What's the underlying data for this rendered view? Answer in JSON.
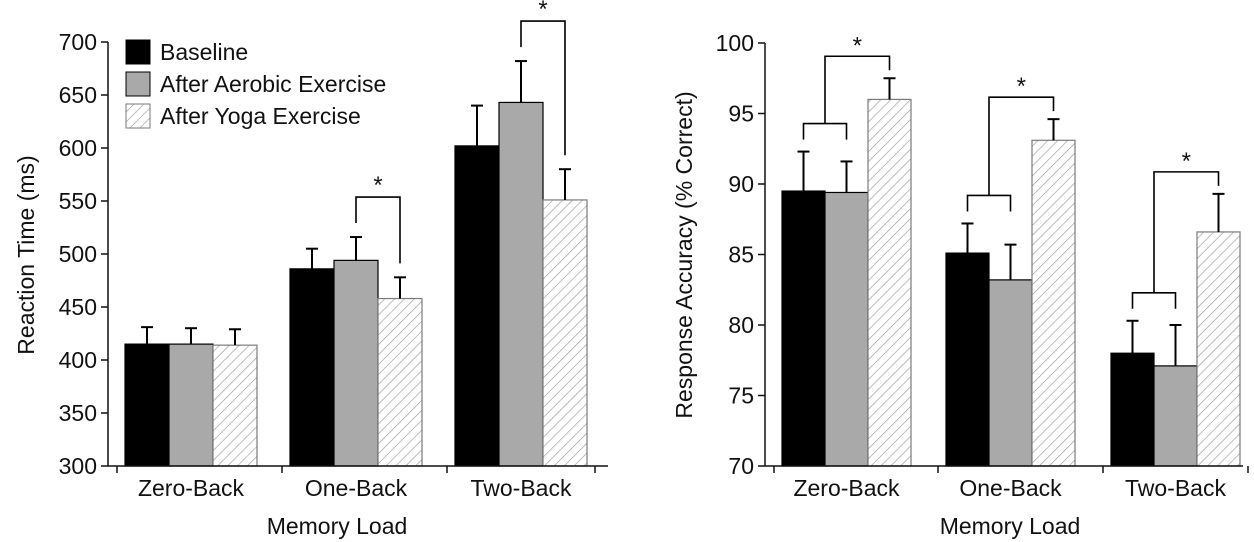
{
  "chart_data": [
    {
      "type": "bar",
      "xlabel": "Memory Load",
      "ylabel": "Reaction Time (ms)",
      "ylim": [
        300,
        700
      ],
      "yticks": [
        300,
        350,
        400,
        450,
        500,
        550,
        600,
        650,
        700
      ],
      "categories": [
        "Zero-Back",
        "One-Back",
        "Two-Back"
      ],
      "series": [
        {
          "name": "Baseline",
          "values": [
            415,
            486,
            602
          ],
          "errors": [
            16,
            19,
            38
          ]
        },
        {
          "name": "After Aerobic Exercise",
          "values": [
            415,
            494,
            643
          ],
          "errors": [
            15,
            22,
            39
          ]
        },
        {
          "name": "After Yoga Exercise",
          "values": [
            414,
            458,
            551
          ],
          "errors": [
            15,
            20,
            29
          ]
        }
      ],
      "legend": "top-left",
      "grid": false,
      "significance": [
        {
          "category": "One-Back",
          "between": [
            "After Aerobic Exercise",
            "After Yoga Exercise"
          ],
          "label": "*"
        },
        {
          "category": "Two-Back",
          "between": [
            "After Aerobic Exercise",
            "After Yoga Exercise"
          ],
          "label": "*"
        }
      ]
    },
    {
      "type": "bar",
      "xlabel": "Memory Load",
      "ylabel": "Response Accuracy (% Correct)",
      "ylim": [
        70,
        100
      ],
      "yticks": [
        70,
        75,
        80,
        85,
        90,
        95,
        100
      ],
      "categories": [
        "Zero-Back",
        "One-Back",
        "Two-Back"
      ],
      "series": [
        {
          "name": "Baseline",
          "values": [
            89.5,
            85.1,
            78.0
          ],
          "errors": [
            2.8,
            2.1,
            2.3
          ]
        },
        {
          "name": "After Aerobic Exercise",
          "values": [
            89.4,
            83.2,
            77.1
          ],
          "errors": [
            2.2,
            2.5,
            2.9
          ]
        },
        {
          "name": "After Yoga Exercise",
          "values": [
            96.0,
            93.1,
            86.6
          ],
          "errors": [
            1.5,
            1.5,
            2.7
          ]
        }
      ],
      "grid": false,
      "significance": [
        {
          "category": "Zero-Back",
          "between": [
            "Baseline + After Aerobic Exercise",
            "After Yoga Exercise"
          ],
          "label": "*"
        },
        {
          "category": "One-Back",
          "between": [
            "Baseline + After Aerobic Exercise",
            "After Yoga Exercise"
          ],
          "label": "*"
        },
        {
          "category": "Two-Back",
          "between": [
            "Baseline + After Aerobic Exercise",
            "After Yoga Exercise"
          ],
          "label": "*"
        }
      ]
    }
  ],
  "colors": {
    "baseline": "#000000",
    "aerobic": "#a9a9a9",
    "yoga_fill": "#ffffff",
    "yoga_hatch": "#9a9a9a",
    "axis": "#111111"
  }
}
